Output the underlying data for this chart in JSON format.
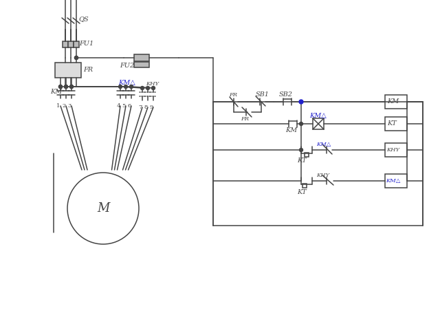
{
  "bg": "white",
  "lc": "#444444",
  "bc": "#2222cc",
  "lw": 1.1,
  "figsize": [
    6.4,
    4.58
  ],
  "dpi": 100,
  "xlim": [
    0,
    640
  ],
  "ylim": [
    0,
    458
  ]
}
